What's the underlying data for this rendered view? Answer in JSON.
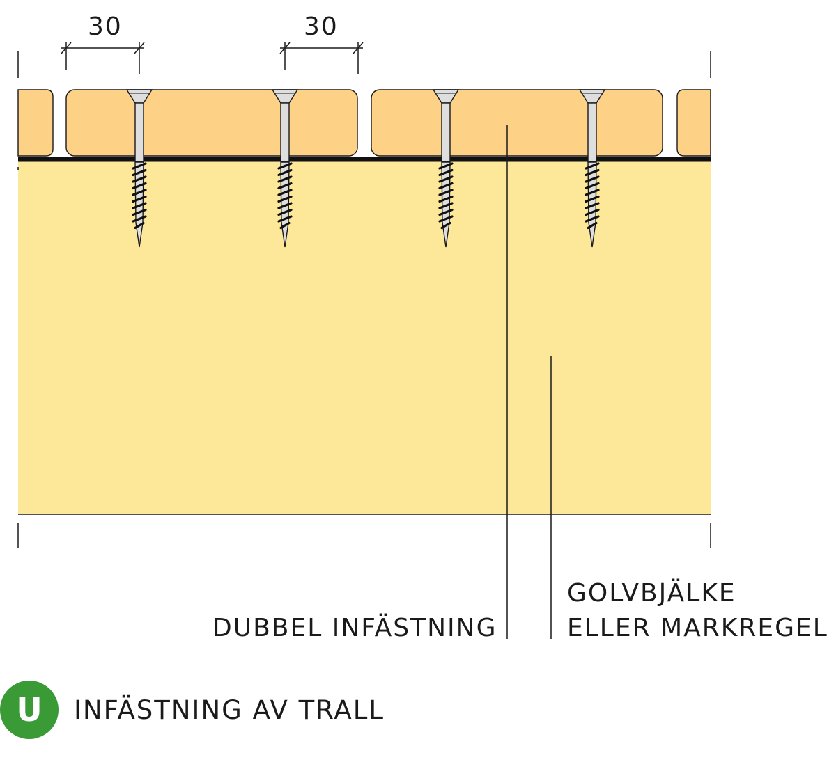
{
  "colors": {
    "board": "#fdd287",
    "joist": "#fde899",
    "outline": "#1a1a1a",
    "screw": "#dedede",
    "badge": "#3a9a35"
  },
  "dimensions": {
    "left_spacing": "30",
    "right_spacing": "30"
  },
  "labels": {
    "double_fastening": "DUBBEL INFÄSTNING",
    "joist_line1": "GOLVBJÄLKE",
    "joist_line2": "ELLER MARKREGEL"
  },
  "legend": {
    "badge_letter": "U",
    "title": "INFÄSTNING AV TRALL"
  },
  "icons": {
    "screw": "countersunk-wood-screw-icon",
    "badge": "category-badge-icon"
  }
}
